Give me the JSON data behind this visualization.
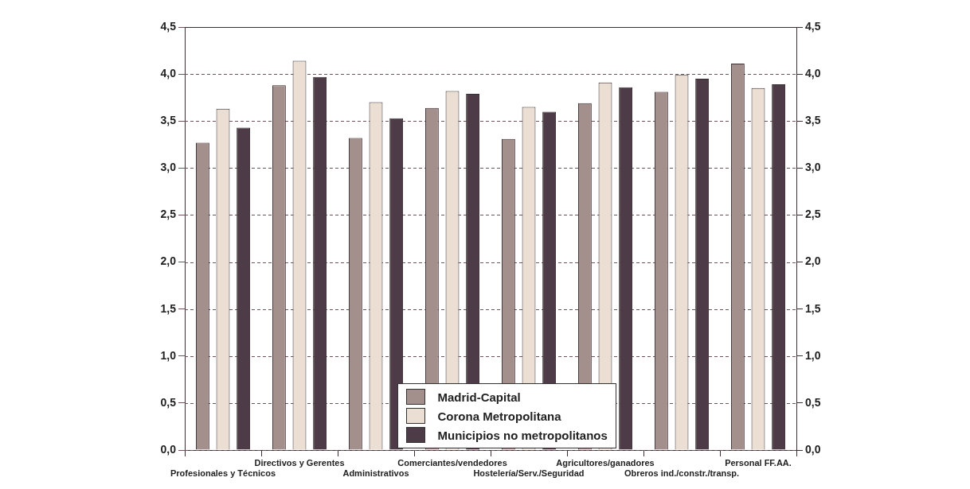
{
  "chart_data": {
    "type": "bar",
    "categories": [
      "Profesionales y Técnicos",
      "Directivos y Gerentes",
      "Administrativos",
      "Comerciantes/vendedores",
      "Hostelería/Serv./Seguridad",
      "Agricultores/ganadores",
      "Obreros ind./constr./transp.",
      "Personal FF.AA."
    ],
    "series": [
      {
        "name": "Madrid-Capital",
        "color": "#a38f8c",
        "values": [
          3.27,
          3.88,
          3.32,
          3.64,
          3.31,
          3.69,
          3.81,
          4.11
        ]
      },
      {
        "name": "Corona Metropolitana",
        "color": "#eadfd2",
        "values": [
          3.63,
          4.14,
          3.7,
          3.82,
          3.65,
          3.91,
          3.99,
          3.85
        ]
      },
      {
        "name": "Municipios no metropolitanos",
        "color": "#4d3c47",
        "values": [
          3.43,
          3.97,
          3.53,
          3.79,
          3.6,
          3.86,
          3.95,
          3.89
        ]
      }
    ],
    "ylim": [
      0,
      4.5
    ],
    "yticks": [
      {
        "value": 0,
        "label": "0,0"
      },
      {
        "value": 0.5,
        "label": "0,5"
      },
      {
        "value": 1,
        "label": "1,0"
      },
      {
        "value": 1.5,
        "label": "1,5"
      },
      {
        "value": 2,
        "label": "2,0"
      },
      {
        "value": 2.5,
        "label": "2,5"
      },
      {
        "value": 3,
        "label": "3,0"
      },
      {
        "value": 3.5,
        "label": "3,5"
      },
      {
        "value": 4,
        "label": "4,0"
      },
      {
        "value": 4.5,
        "label": "4,5"
      }
    ],
    "y2lim": [
      0,
      4.5
    ],
    "y2ticks": [
      {
        "value": 0,
        "label": "0,0"
      },
      {
        "value": 0.5,
        "label": "0,5"
      },
      {
        "value": 1,
        "label": "1,0"
      },
      {
        "value": 1.5,
        "label": "1,5"
      },
      {
        "value": 2,
        "label": "2,0"
      },
      {
        "value": 2.5,
        "label": "2,5"
      },
      {
        "value": 3,
        "label": "3,0"
      },
      {
        "value": 3.5,
        "label": "3,5"
      },
      {
        "value": 4,
        "label": "4,0"
      },
      {
        "value": 4.5,
        "label": "4,5"
      }
    ],
    "grid": "y",
    "line_style": "dashed",
    "legend": "bottom"
  }
}
